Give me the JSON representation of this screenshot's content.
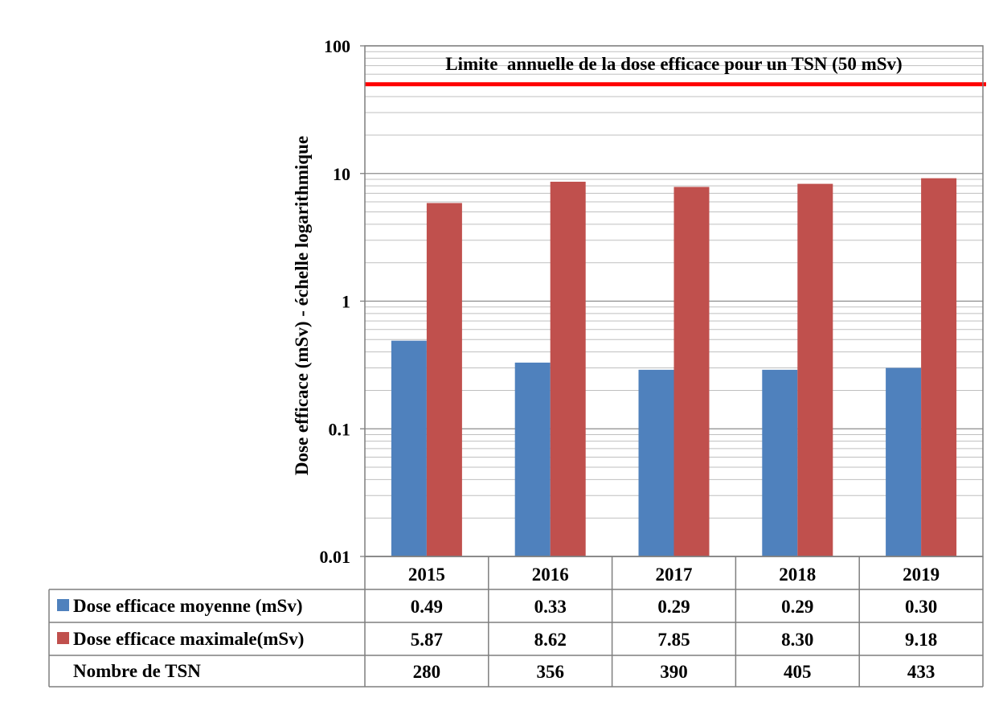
{
  "chart_data": {
    "type": "bar",
    "yscale": "log",
    "ylim": [
      0.01,
      100
    ],
    "yticks": [
      "100",
      "10",
      "1",
      "0.1",
      "0.01"
    ],
    "ylabel": "Dose efficace (mSv) - échelle logarithmique",
    "categories": [
      "2015",
      "2016",
      "2017",
      "2018",
      "2019"
    ],
    "grid": true,
    "legend": "data-table",
    "series": [
      {
        "name": "Dose efficace moyenne (mSv)",
        "color": "#4f81bd",
        "values": [
          0.49,
          0.33,
          0.29,
          0.29,
          0.3
        ],
        "labels": [
          "0.49",
          "0.33",
          "0.29",
          "0.29",
          "0.30"
        ]
      },
      {
        "name": "Dose efficace maximale(mSv)",
        "color": "#c0504d",
        "values": [
          5.87,
          8.62,
          7.85,
          8.3,
          9.18
        ],
        "labels": [
          "5.87",
          "8.62",
          "7.85",
          "8.30",
          "9.18"
        ]
      }
    ],
    "table_rows": [
      {
        "name": "Nombre de TSN",
        "values": [
          "280",
          "356",
          "390",
          "405",
          "433"
        ]
      }
    ],
    "reference_line": {
      "value": 50,
      "label": "Limite  annuelle de la dose efficace pour un TSN (50 mSv)",
      "color": "#ff0000"
    }
  }
}
